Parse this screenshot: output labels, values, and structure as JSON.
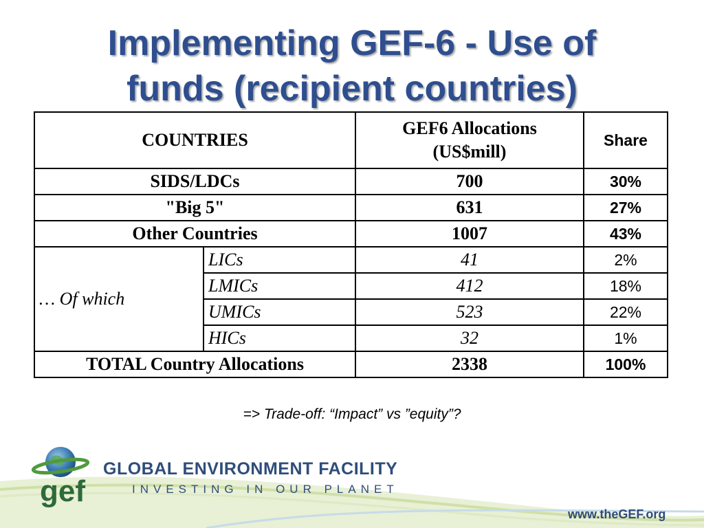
{
  "title": {
    "line1": "Implementing GEF-6 - Use of",
    "line2": "funds (recipient countries)"
  },
  "table": {
    "headers": {
      "countries": "COUNTRIES",
      "allocations_line1": "GEF6 Allocations",
      "allocations_line2": "(US$mill)",
      "share": "Share"
    },
    "rows": [
      {
        "label": "SIDS/LDCs",
        "allocation": "700",
        "share": "30%"
      },
      {
        "label": "\"Big 5\"",
        "allocation": "631",
        "share": "27%"
      },
      {
        "label": "Other Countries",
        "allocation": "1007",
        "share": "43%"
      }
    ],
    "of_which_label": "… Of which",
    "subrows": [
      {
        "label": "LICs",
        "allocation": "41",
        "share": "2%"
      },
      {
        "label": "LMICs",
        "allocation": "412",
        "share": "18%"
      },
      {
        "label": "UMICs",
        "allocation": "523",
        "share": "22%"
      },
      {
        "label": "HICs",
        "allocation": "32",
        "share": "1%"
      }
    ],
    "total": {
      "label": "TOTAL Country Allocations",
      "allocation": "2338",
      "share": "100%"
    }
  },
  "note": "=> Trade-off: “Impact” vs  ”equity”?",
  "footer": {
    "logo_text": "gef",
    "org_name": "GLOBAL ENVIRONMENT FACILITY",
    "tagline": "INVESTING IN OUR PLANET",
    "website": "www.theGEF.org"
  },
  "colors": {
    "title": "#2e4e8f",
    "brand_blue": "#2f4d7a",
    "brand_green": "#2e6a3a"
  }
}
